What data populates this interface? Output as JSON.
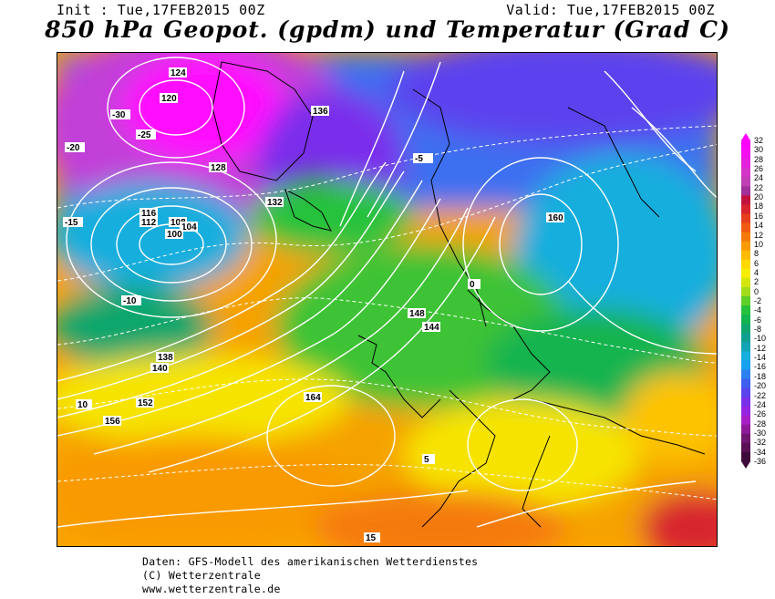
{
  "header": {
    "init": "Init : Tue,17FEB2015 00Z",
    "valid": "Valid: Tue,17FEB2015 00Z",
    "title": "850 hPa Geopot. (gpdm) und Temperatur (Grad C)"
  },
  "map": {
    "geopotential_labels": [
      "124",
      "120",
      "116",
      "112",
      "108",
      "104",
      "100",
      "128",
      "132",
      "136",
      "138",
      "140",
      "144",
      "148",
      "152",
      "156",
      "160",
      "164"
    ],
    "temperature_labels": [
      "-30",
      "-25",
      "-20",
      "-15",
      "-10",
      "-5",
      "0",
      "5",
      "10",
      "15"
    ]
  },
  "colorbar": {
    "labels": [
      "32",
      "30",
      "28",
      "26",
      "24",
      "22",
      "20",
      "18",
      "16",
      "14",
      "12",
      "10",
      "8",
      "6",
      "4",
      "2",
      "0",
      "-2",
      "-4",
      "-6",
      "-8",
      "-10",
      "-12",
      "-14",
      "-16",
      "-18",
      "-20",
      "-22",
      "-24",
      "-26",
      "-28",
      "-30",
      "-32",
      "-34",
      "-36"
    ],
    "colors": [
      "#ff00ff",
      "#f30fef",
      "#e522dd",
      "#d434c8",
      "#c03fb4",
      "#a3309a",
      "#c2133e",
      "#d8252e",
      "#e63f1e",
      "#f05a12",
      "#f57a0a",
      "#f99a05",
      "#fdbb02",
      "#ffd900",
      "#f6ec04",
      "#d3e70d",
      "#a3dc1a",
      "#5fcf2a",
      "#27c23d",
      "#12b44f",
      "#0ea66c",
      "#0fa08f",
      "#12a4b4",
      "#15aedd",
      "#1aa0f0",
      "#2c7ff0",
      "#3e5ff0",
      "#5b43ee",
      "#7a2feb",
      "#9624e3",
      "#a81fc8",
      "#8e1999",
      "#70166f",
      "#5a0f54",
      "#3d0a3a"
    ]
  },
  "credits": {
    "line1": "Daten: GFS-Modell des amerikanischen Wetterdienstes",
    "line2": "(C) Wetterzentrale",
    "line3": "www.wetterzentrale.de"
  }
}
